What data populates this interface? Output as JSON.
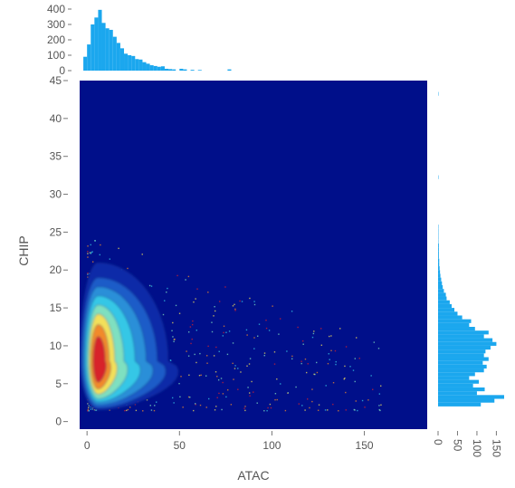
{
  "chart_data": {
    "type": "scatter",
    "subtype": "joint density plot with marginal histograms",
    "xlabel": "ATAC",
    "ylabel": "CHIP",
    "xlim": [
      -4,
      184
    ],
    "ylim": [
      -1,
      45
    ],
    "x_ticks": [
      "0",
      "50",
      "100",
      "150"
    ],
    "y_ticks": [
      "0",
      "5",
      "10",
      "15",
      "20",
      "25",
      "30",
      "35",
      "40",
      "45"
    ],
    "top_hist_ticks": [
      "0",
      "100",
      "200",
      "300",
      "400"
    ],
    "right_hist_ticks": [
      "0",
      "50",
      "100",
      "150"
    ],
    "grid": false,
    "colors": {
      "background": "#000f8a",
      "histogram": "#1ba7ee",
      "contour_fill_scale": [
        "#0b2aa8",
        "#1d5bc8",
        "#2a8fd8",
        "#35c7e6",
        "#7fe0c0",
        "#f3e05a",
        "#f28a2a",
        "#d8222c"
      ]
    },
    "density_peak": {
      "x": 6,
      "y": 8
    },
    "top_histogram": {
      "bin_width": 2,
      "bins": [
        {
          "x": -2,
          "count": 90
        },
        {
          "x": 0,
          "count": 170
        },
        {
          "x": 2,
          "count": 300
        },
        {
          "x": 4,
          "count": 345
        },
        {
          "x": 6,
          "count": 395
        },
        {
          "x": 8,
          "count": 310
        },
        {
          "x": 10,
          "count": 275
        },
        {
          "x": 12,
          "count": 265
        },
        {
          "x": 14,
          "count": 220
        },
        {
          "x": 16,
          "count": 180
        },
        {
          "x": 18,
          "count": 145
        },
        {
          "x": 20,
          "count": 110
        },
        {
          "x": 22,
          "count": 100
        },
        {
          "x": 24,
          "count": 95
        },
        {
          "x": 26,
          "count": 75
        },
        {
          "x": 28,
          "count": 72
        },
        {
          "x": 30,
          "count": 55
        },
        {
          "x": 32,
          "count": 45
        },
        {
          "x": 34,
          "count": 35
        },
        {
          "x": 36,
          "count": 30
        },
        {
          "x": 38,
          "count": 25
        },
        {
          "x": 40,
          "count": 28
        },
        {
          "x": 42,
          "count": 12
        },
        {
          "x": 44,
          "count": 10
        },
        {
          "x": 46,
          "count": 8
        },
        {
          "x": 50,
          "count": 12
        },
        {
          "x": 52,
          "count": 8
        },
        {
          "x": 56,
          "count": 5
        },
        {
          "x": 60,
          "count": 4
        },
        {
          "x": 76,
          "count": 8
        }
      ]
    },
    "right_histogram": {
      "bin_width": 0.5,
      "bins": [
        {
          "y": 2,
          "count": 110
        },
        {
          "y": 2.5,
          "count": 145
        },
        {
          "y": 3,
          "count": 170
        },
        {
          "y": 3.5,
          "count": 100
        },
        {
          "y": 4,
          "count": 120
        },
        {
          "y": 4.5,
          "count": 90
        },
        {
          "y": 5,
          "count": 105
        },
        {
          "y": 5.5,
          "count": 80
        },
        {
          "y": 6,
          "count": 95
        },
        {
          "y": 6.5,
          "count": 118
        },
        {
          "y": 7,
          "count": 125
        },
        {
          "y": 7.5,
          "count": 115
        },
        {
          "y": 8,
          "count": 130
        },
        {
          "y": 8.5,
          "count": 118
        },
        {
          "y": 9,
          "count": 122
        },
        {
          "y": 9.5,
          "count": 135
        },
        {
          "y": 10,
          "count": 150
        },
        {
          "y": 10.5,
          "count": 140
        },
        {
          "y": 11,
          "count": 118
        },
        {
          "y": 11.5,
          "count": 130
        },
        {
          "y": 12,
          "count": 95
        },
        {
          "y": 12.5,
          "count": 80
        },
        {
          "y": 13,
          "count": 85
        },
        {
          "y": 13.5,
          "count": 62
        },
        {
          "y": 14,
          "count": 50
        },
        {
          "y": 14.5,
          "count": 42
        },
        {
          "y": 15,
          "count": 35
        },
        {
          "y": 15.5,
          "count": 30
        },
        {
          "y": 16,
          "count": 22
        },
        {
          "y": 16.5,
          "count": 20
        },
        {
          "y": 17,
          "count": 15
        },
        {
          "y": 17.5,
          "count": 12
        },
        {
          "y": 18,
          "count": 10
        },
        {
          "y": 18.5,
          "count": 8
        },
        {
          "y": 19,
          "count": 6
        },
        {
          "y": 19.5,
          "count": 5
        },
        {
          "y": 20,
          "count": 4
        },
        {
          "y": 20.5,
          "count": 3
        },
        {
          "y": 21,
          "count": 3
        },
        {
          "y": 21.5,
          "count": 2
        },
        {
          "y": 22,
          "count": 2
        },
        {
          "y": 22.5,
          "count": 2
        },
        {
          "y": 23,
          "count": 2
        },
        {
          "y": 23.5,
          "count": 1
        },
        {
          "y": 24,
          "count": 1
        },
        {
          "y": 24.5,
          "count": 1
        },
        {
          "y": 25,
          "count": 1
        },
        {
          "y": 25.5,
          "count": 1
        },
        {
          "y": 32,
          "count": 1
        },
        {
          "y": 43,
          "count": 1
        }
      ]
    }
  }
}
